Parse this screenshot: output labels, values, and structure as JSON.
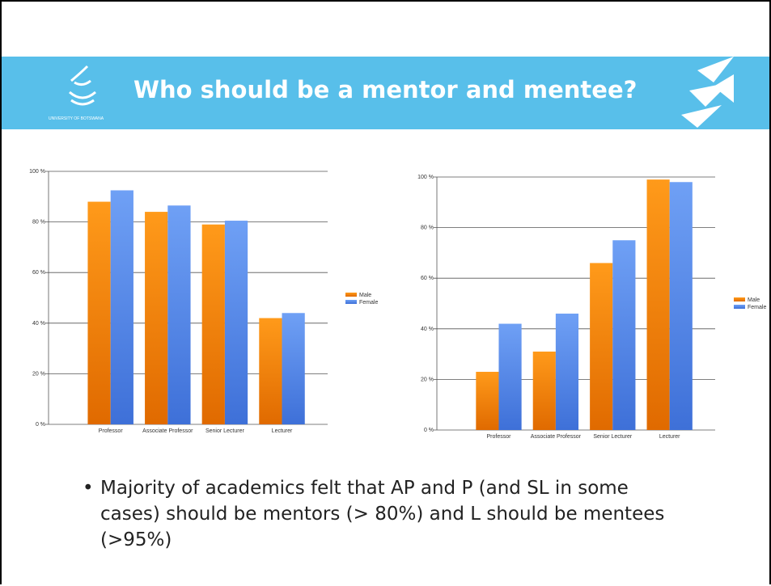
{
  "title": "Who should be a mentor and mentee?",
  "bullets": [
    "Majority of academics felt that AP and P (and SL in some cases) should be mentors (> 80%) and L should be mentees (>95%)"
  ],
  "chart_data": [
    {
      "type": "bar",
      "categories": [
        "Professor",
        "Associate Professor",
        "Senior Lecturer",
        "Lecturer"
      ],
      "series": [
        {
          "name": "Male",
          "color": "#f08a00",
          "values": [
            88,
            84,
            79,
            42
          ]
        },
        {
          "name": "Female",
          "color": "#5b8def",
          "values": [
            92.5,
            86.5,
            80.5,
            44
          ]
        }
      ],
      "ylim": [
        0,
        100
      ],
      "yticks": [
        {
          "value": 0,
          "label": "0 %"
        },
        {
          "value": 20,
          "label": "20 %"
        },
        {
          "value": 40,
          "label": "40 %"
        },
        {
          "value": 60,
          "label": "60 %"
        },
        {
          "value": 80,
          "label": "80 %"
        },
        {
          "value": 100,
          "label": "100 %"
        }
      ],
      "grid": true,
      "legend": "right"
    },
    {
      "type": "bar",
      "categories": [
        "Professor",
        "Associate Professor",
        "Senior Lecturer",
        "Lecturer"
      ],
      "series": [
        {
          "name": "Male",
          "color": "#f08a00",
          "values": [
            23,
            31,
            66,
            99
          ]
        },
        {
          "name": "Female",
          "color": "#5b8def",
          "values": [
            42,
            46,
            75,
            98
          ]
        }
      ],
      "ylim": [
        0,
        100
      ],
      "yticks": [
        {
          "value": 0,
          "label": "0 %"
        },
        {
          "value": 20,
          "label": "20 %"
        },
        {
          "value": 40,
          "label": "40 %"
        },
        {
          "value": 60,
          "label": "60 %"
        },
        {
          "value": 80,
          "label": "80 %"
        },
        {
          "value": 100,
          "label": "100 %"
        }
      ],
      "grid": true,
      "legend": "right"
    }
  ]
}
